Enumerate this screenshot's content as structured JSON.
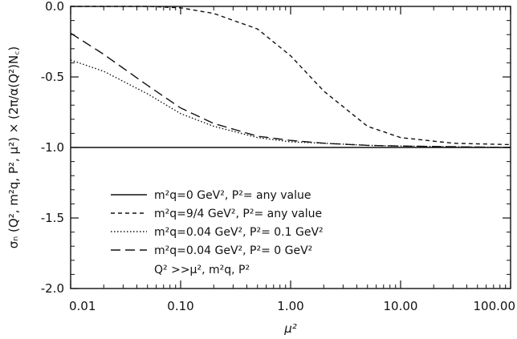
{
  "chart_data": {
    "type": "line",
    "title": "",
    "xlabel": "μ²",
    "ylabel": "σₙ (Q², m²q, P², μ²) × (2π/α(Q²)N꜀)",
    "xscale": "log",
    "xlim": [
      0.01,
      100.0
    ],
    "ylim": [
      -2.0,
      0.0
    ],
    "grid": false,
    "legend_position": "lower-left",
    "x_ticks": [
      0.01,
      0.1,
      1.0,
      10.0,
      100.0
    ],
    "x_tick_labels": [
      "0.01",
      "0.10",
      "1.00",
      "10.00",
      "100.00"
    ],
    "y_ticks": [
      0.0,
      -0.5,
      -1.0,
      -1.5,
      -2.0
    ],
    "y_tick_labels": [
      "0.0",
      "-0.5",
      "-1.0",
      "-1.5",
      "-2.0"
    ],
    "series": [
      {
        "name": "m²q=0 GeV², P²= any value",
        "style": "solid",
        "x": [
          0.01,
          100.0
        ],
        "y": [
          -1.0,
          -1.0
        ]
      },
      {
        "name": "m²q=9/4 GeV², P²= any value",
        "style": "dashed",
        "x": [
          0.01,
          0.05,
          0.1,
          0.2,
          0.5,
          1.0,
          2.0,
          5.0,
          10.0,
          30.0,
          100.0
        ],
        "y": [
          0.0,
          0.0,
          -0.01,
          -0.05,
          -0.16,
          -0.35,
          -0.6,
          -0.85,
          -0.93,
          -0.97,
          -0.98
        ]
      },
      {
        "name": "m²q=0.04 GeV², P²= 0.1 GeV²",
        "style": "dotted",
        "x": [
          0.01,
          0.02,
          0.05,
          0.1,
          0.2,
          0.5,
          1.0,
          2.0,
          5.0,
          10.0,
          100.0
        ],
        "y": [
          -0.38,
          -0.46,
          -0.62,
          -0.76,
          -0.85,
          -0.93,
          -0.96,
          -0.97,
          -0.985,
          -0.99,
          -1.0
        ]
      },
      {
        "name": "m²q=0.04 GeV², P²= 0 GeV²",
        "style": "longdash",
        "x": [
          0.01,
          0.02,
          0.05,
          0.1,
          0.2,
          0.5,
          1.0,
          2.0,
          5.0,
          10.0,
          100.0
        ],
        "y": [
          -0.19,
          -0.34,
          -0.56,
          -0.72,
          -0.83,
          -0.92,
          -0.95,
          -0.97,
          -0.985,
          -0.99,
          -1.0
        ]
      }
    ],
    "legend_note": "Q² >>μ², m²q, P²"
  }
}
